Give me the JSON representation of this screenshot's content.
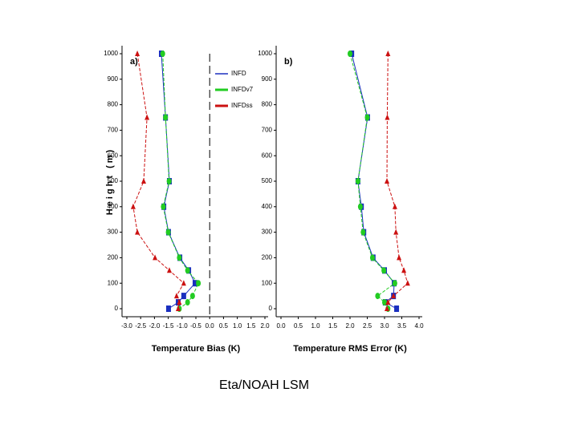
{
  "chart_data": [
    {
      "type": "line",
      "panel_label": "a)",
      "x_label": "Temperature Bias (K)",
      "y_label": "Height (m)",
      "xlim": [
        -3.0,
        2.0
      ],
      "xticks": [
        {
          "value": -3.0,
          "label": "-3.0"
        },
        {
          "value": -2.5,
          "label": "-2.5"
        },
        {
          "value": -2.0,
          "label": "-2.0"
        },
        {
          "value": -1.5,
          "label": "-1.5"
        },
        {
          "value": -1.0,
          "label": "-1.0"
        },
        {
          "value": -0.5,
          "label": "-0.5"
        },
        {
          "value": 0.0,
          "label": "0.0"
        },
        {
          "value": 0.5,
          "label": "0.5"
        },
        {
          "value": 1.0,
          "label": "1.0"
        },
        {
          "value": 1.5,
          "label": "1.5"
        },
        {
          "value": 2.0,
          "label": "2.0"
        }
      ],
      "ylim": [
        0,
        1000
      ],
      "yticks": [
        0,
        100,
        200,
        300,
        400,
        500,
        600,
        700,
        800,
        900,
        1000
      ],
      "legend": "upper right",
      "y": [
        1000,
        750,
        500,
        400,
        300,
        200,
        150,
        100,
        50,
        25,
        0
      ],
      "series": [
        {
          "name": "INFD",
          "color": "#1a2fbf",
          "marker": "square",
          "values": [
            -1.75,
            -1.6,
            -1.46,
            -1.66,
            -1.49,
            -1.08,
            -0.76,
            -0.53,
            -0.94,
            -1.14,
            -1.49
          ]
        },
        {
          "name": "INFDv7",
          "color": "#22cc22",
          "marker": "circle",
          "values": [
            -1.7,
            -1.6,
            -1.47,
            -1.68,
            -1.5,
            -1.1,
            -0.8,
            -0.41,
            -0.62,
            -0.8,
            -1.1
          ]
        },
        {
          "name": "INFDss",
          "color": "#cc1111",
          "marker": "triangle",
          "values": [
            -2.62,
            -2.27,
            -2.39,
            -2.77,
            -2.62,
            -1.98,
            -1.46,
            -0.94,
            -1.2,
            -1.1,
            -1.14
          ]
        }
      ]
    },
    {
      "type": "line",
      "panel_label": "b)",
      "x_label": "Temperature RMS Error (K)",
      "xlim": [
        0.0,
        4.0
      ],
      "xticks": [
        {
          "value": 0.0,
          "label": "0.0"
        },
        {
          "value": 0.5,
          "label": "0.5"
        },
        {
          "value": 1.0,
          "label": "1.0"
        },
        {
          "value": 1.5,
          "label": "1.5"
        },
        {
          "value": 2.0,
          "label": "2.0"
        },
        {
          "value": 2.5,
          "label": "2.5"
        },
        {
          "value": 3.0,
          "label": "3.0"
        },
        {
          "value": 3.5,
          "label": "3.5"
        },
        {
          "value": 4.0,
          "label": "4.0"
        }
      ],
      "ylim": [
        0,
        1000
      ],
      "yticks": [
        0,
        100,
        200,
        300,
        400,
        500,
        600,
        700,
        800,
        900,
        1000
      ],
      "y": [
        1000,
        750,
        500,
        400,
        300,
        200,
        150,
        100,
        50,
        25,
        0
      ],
      "series": [
        {
          "color": "#1a2fbf",
          "marker": "square",
          "values": [
            2.05,
            2.51,
            2.23,
            2.33,
            2.4,
            2.67,
            3.0,
            3.28,
            3.26,
            3.02,
            3.35
          ]
        },
        {
          "color": "#22cc22",
          "marker": "circle",
          "values": [
            2.0,
            2.5,
            2.23,
            2.3,
            2.38,
            2.65,
            2.98,
            3.3,
            2.8,
            3.0,
            3.1
          ]
        },
        {
          "color": "#cc1111",
          "marker": "triangle",
          "values": [
            3.1,
            3.08,
            3.07,
            3.3,
            3.33,
            3.42,
            3.56,
            3.67,
            3.26,
            3.1,
            3.07
          ]
        }
      ]
    }
  ],
  "caption": "Eta/NOAH LSM"
}
